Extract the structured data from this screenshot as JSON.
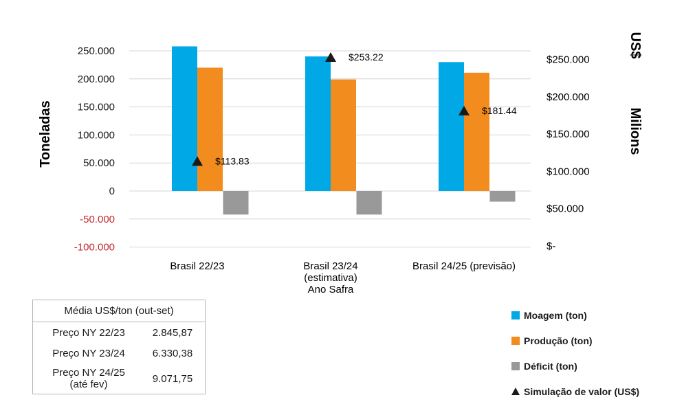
{
  "chart_data": {
    "type": "bar",
    "categories": [
      [
        "Brasil 22/23"
      ],
      [
        "Brasil 23/24",
        "(estimativa)",
        "Ano Safra"
      ],
      [
        "Brasil 24/25 (previsão)"
      ]
    ],
    "series": [
      {
        "name": "Moagem (ton)",
        "values": [
          258000,
          240000,
          230000
        ],
        "color": "#00a8e6"
      },
      {
        "name": "Produção (ton)",
        "values": [
          220000,
          199000,
          211000
        ],
        "color": "#f28c1e"
      },
      {
        "name": "Déficit (ton)",
        "values": [
          -42000,
          -42000,
          -19000
        ],
        "color": "#999999"
      }
    ],
    "simulation": {
      "name": "Simulação de valor (US$)",
      "values": [
        113.83,
        253.22,
        181.44
      ],
      "labels": [
        "$113.83",
        "$253.22",
        "$181.44"
      ]
    },
    "y_left": {
      "title": "Toneladas",
      "range": [
        -100000,
        250000
      ],
      "ticks": [
        250000,
        200000,
        150000,
        100000,
        50000,
        0,
        -50000,
        -100000
      ],
      "tick_labels": [
        "250.000",
        "200.000",
        "150.000",
        "100.000",
        "50.000",
        "0",
        "-50.000",
        "-100.000"
      ],
      "negative_color": "#c0282e"
    },
    "y_right": {
      "title_unit": "US$",
      "title": "Milions",
      "range": [
        0,
        300
      ],
      "ticks": [
        250,
        200,
        150,
        100,
        50,
        0
      ],
      "tick_labels": [
        "$250.000",
        "$200.000",
        "$150.000",
        "$100.000",
        "$50.000",
        "$-"
      ]
    },
    "grid": true,
    "legend_position": "bottom-right"
  },
  "table": {
    "header": "Média US$/ton (out-set)",
    "rows": [
      {
        "label": "Preço NY 22/23",
        "value": "2.845,87"
      },
      {
        "label": "Preço NY 23/24",
        "value": "6.330,38"
      },
      {
        "label": "Preço NY 24/25\n(até fev)",
        "value": "9.071,75"
      }
    ]
  }
}
